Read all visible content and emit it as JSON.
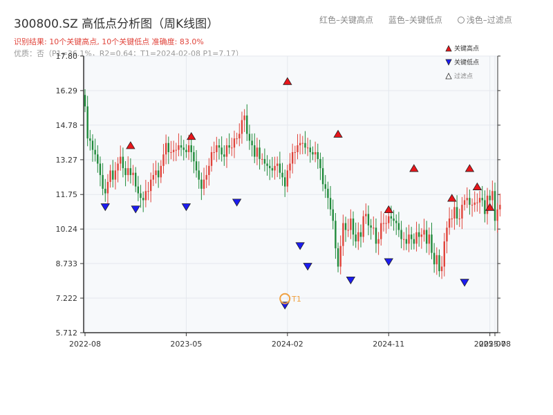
{
  "header": {
    "title": "300800.SZ 高低点分析图（周K线图）",
    "result_text": "识别结果: 10个关键高点, 10个关键低点   准确度: 83.0%",
    "quality_text": "优质：否（P1=36.1%，R2=0.64；T1=2024-02-08 P1=7.17）"
  },
  "top_legend": {
    "red_label": "红色–关键高点",
    "blue_label": "蓝色–关键低点",
    "light_label": "浅色–过滤点"
  },
  "legend": {
    "high_label": "关键高点",
    "low_label": "关键低点",
    "filtered_label": "过滤点"
  },
  "colors": {
    "up": "#e0433a",
    "down": "#1f8a3a",
    "high_marker": "#e8161b",
    "low_marker": "#1c1cf0",
    "t1": "#f0a040"
  },
  "chart_data": {
    "type": "candlestick",
    "title": "300800.SZ 高低点分析图（周K线图）",
    "xlabel": "",
    "ylabel": "",
    "ylim": [
      5.712,
      17.8
    ],
    "yticks": [
      5.712,
      7.222,
      8.733,
      10.24,
      11.75,
      13.27,
      14.78,
      16.29,
      17.8
    ],
    "ytick_labels": [
      "5.712",
      "7.222",
      "8.733",
      "10.24",
      "11.75",
      "13.27",
      "14.78",
      "16.29",
      "17.80"
    ],
    "xticks": [
      {
        "label": "2022-08",
        "index": 0
      },
      {
        "label": "2023-05",
        "index": 40
      },
      {
        "label": "2024-02",
        "index": 80
      },
      {
        "label": "2024-11",
        "index": 120
      },
      {
        "label": "2025-07",
        "index": 160
      },
      {
        "label": "2025-08",
        "index": 162
      }
    ],
    "x_count": 163,
    "closes": [
      15.6,
      14.2,
      14.1,
      13.7,
      13.5,
      13.1,
      12.6,
      12.0,
      11.8,
      12.3,
      12.8,
      12.4,
      12.8,
      13.1,
      13.4,
      12.9,
      12.6,
      12.9,
      12.6,
      12.7,
      12.1,
      11.8,
      11.6,
      11.5,
      11.9,
      11.9,
      12.4,
      12.6,
      12.8,
      12.5,
      13.0,
      13.5,
      14.0,
      13.6,
      13.6,
      13.7,
      13.7,
      13.9,
      13.8,
      13.7,
      13.6,
      13.9,
      13.6,
      13.2,
      12.8,
      12.4,
      12.0,
      12.4,
      12.6,
      13.0,
      13.6,
      13.6,
      13.9,
      13.8,
      13.5,
      13.4,
      13.9,
      13.8,
      13.8,
      14.2,
      14.2,
      14.4,
      15.0,
      15.2,
      14.4,
      14.1,
      13.9,
      13.4,
      13.8,
      13.3,
      13.3,
      13.1,
      13.0,
      12.9,
      12.8,
      13.0,
      13.1,
      12.7,
      12.5,
      12.1,
      12.8,
      13.1,
      13.6,
      13.6,
      13.9,
      14.0,
      14.0,
      13.8,
      13.8,
      13.6,
      13.5,
      13.6,
      13.3,
      12.9,
      12.2,
      12.0,
      11.6,
      11.1,
      10.6,
      9.4,
      8.6,
      9.5,
      10.5,
      10.2,
      10.2,
      10.7,
      10.0,
      9.7,
      10.1,
      9.9,
      10.8,
      10.9,
      10.4,
      10.3,
      10.3,
      9.6,
      9.8,
      10.5,
      10.5,
      10.5,
      10.8,
      10.7,
      10.6,
      10.5,
      10.2,
      9.8,
      9.8,
      9.6,
      10.0,
      9.8,
      9.6,
      10.1,
      9.9,
      10.0,
      10.2,
      9.6,
      10.0,
      9.2,
      8.7,
      9.1,
      8.4,
      8.6,
      9.7,
      10.3,
      10.7,
      10.7,
      11.2,
      10.7,
      10.7,
      11.3,
      11.5,
      11.6,
      11.3,
      11.3,
      11.4,
      11.4,
      11.6,
      11.5,
      10.9,
      11.7,
      11.5,
      11.9,
      10.6,
      11.1,
      11.3
    ],
    "series": [
      {
        "name": "关键高点",
        "points": [
          {
            "index": 18,
            "value": 13.6
          },
          {
            "index": 42,
            "value": 14.0
          },
          {
            "index": 80,
            "value": 16.4
          },
          {
            "index": 100,
            "value": 14.1
          },
          {
            "index": 120,
            "value": 10.8
          },
          {
            "index": 130,
            "value": 12.6
          },
          {
            "index": 145,
            "value": 11.3
          },
          {
            "index": 152,
            "value": 12.6
          },
          {
            "index": 155,
            "value": 11.8
          },
          {
            "index": 160,
            "value": 10.9
          }
        ]
      },
      {
        "name": "关键低点",
        "points": [
          {
            "index": 8,
            "value": 11.5
          },
          {
            "index": 20,
            "value": 11.4
          },
          {
            "index": 40,
            "value": 11.5
          },
          {
            "index": 60,
            "value": 11.7
          },
          {
            "index": 79,
            "value": 7.2
          },
          {
            "index": 85,
            "value": 9.8
          },
          {
            "index": 88,
            "value": 8.9
          },
          {
            "index": 105,
            "value": 8.3
          },
          {
            "index": 120,
            "value": 9.1
          },
          {
            "index": 150,
            "value": 8.2
          }
        ]
      }
    ],
    "annotations": [
      {
        "text": "T1",
        "index": 79,
        "value": 7.2
      }
    ],
    "grid": true
  }
}
